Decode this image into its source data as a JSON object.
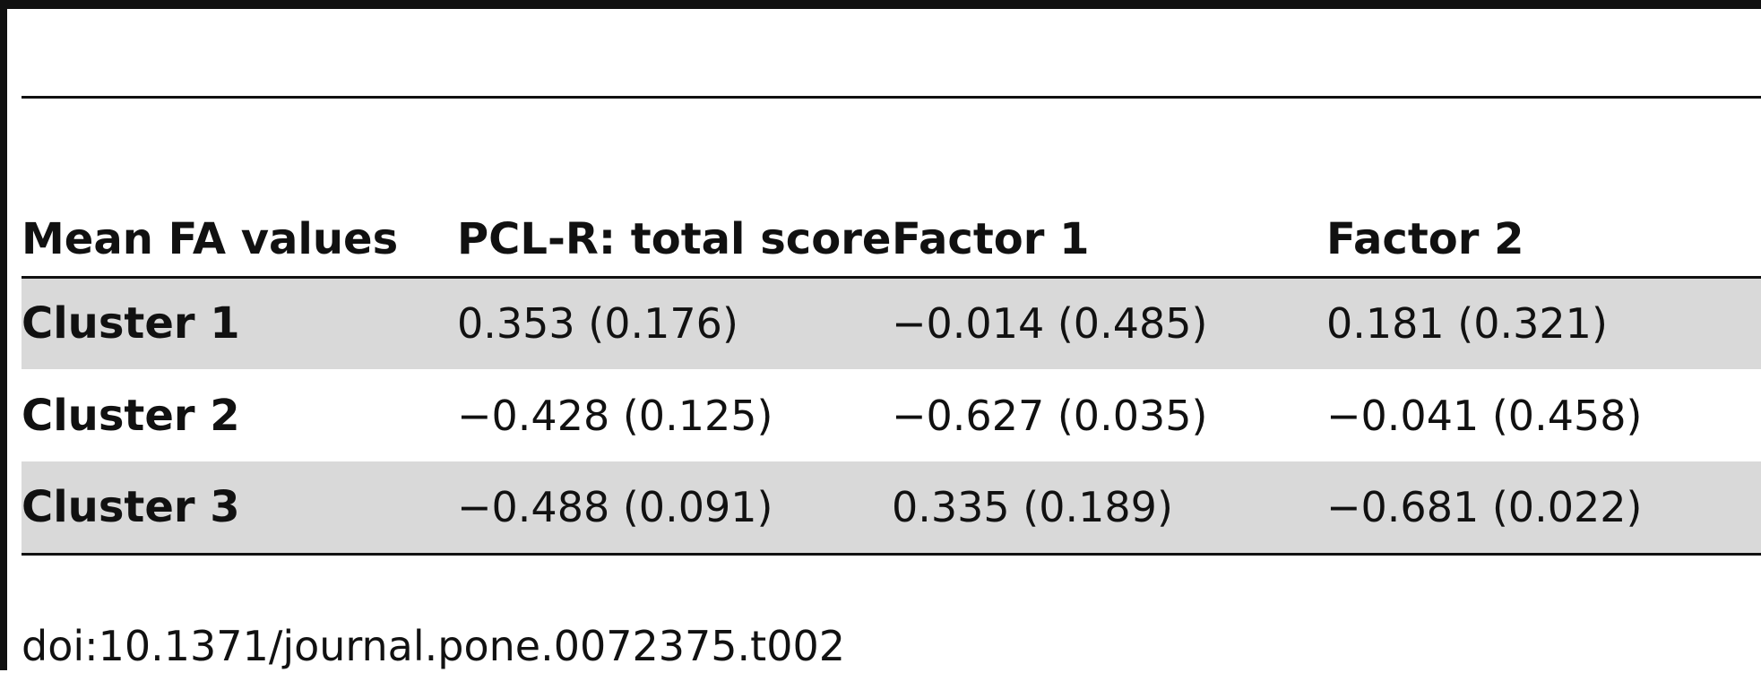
{
  "table": {
    "columns": [
      "Mean FA values",
      "PCL-R: total score",
      "Factor 1",
      "Factor 2"
    ],
    "rows": [
      {
        "label": "Cluster 1",
        "values": [
          "0.353 (0.176)",
          "−0.014 (0.485)",
          "0.181 (0.321)"
        ]
      },
      {
        "label": "Cluster 2",
        "values": [
          "−0.428 (0.125)",
          "−0.627 (0.035)",
          "−0.041 (0.458)"
        ]
      },
      {
        "label": "Cluster 3",
        "values": [
          "−0.488 (0.091)",
          "0.335 (0.189)",
          "−0.681 (0.022)"
        ]
      }
    ]
  },
  "footer": {
    "doi": "doi:10.1371/journal.pone.0072375.t002"
  },
  "colors": {
    "rule": "#111111",
    "shade": "#d9d9d9"
  }
}
